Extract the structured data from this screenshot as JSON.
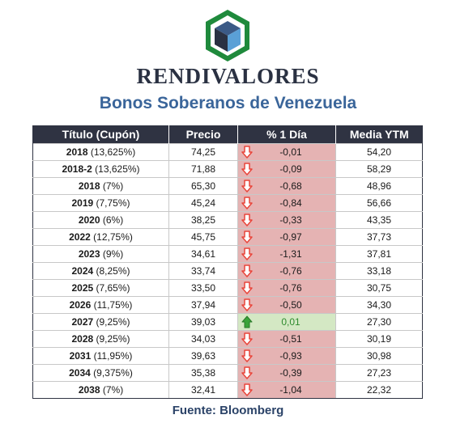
{
  "brand": "RENDIVALORES",
  "subtitle": "Bonos Soberanos de Venezuela",
  "table": {
    "headers": [
      "Título (Cupón)",
      "Precio",
      "% 1 Día",
      "Media YTM"
    ],
    "rows": [
      {
        "year": "2018",
        "coupon": " (13,625%)",
        "price": "74,25",
        "change": "-0,01",
        "direction": "down",
        "ytm": "54,20"
      },
      {
        "year": "2018-2",
        "coupon": " (13,625%)",
        "price": "71,88",
        "change": "-0,09",
        "direction": "down",
        "ytm": "58,29"
      },
      {
        "year": "2018",
        "coupon": " (7%)",
        "price": "65,30",
        "change": "-0,68",
        "direction": "down",
        "ytm": "48,96"
      },
      {
        "year": "2019",
        "coupon": " (7,75%)",
        "price": "45,24",
        "change": "-0,84",
        "direction": "down",
        "ytm": "56,66"
      },
      {
        "year": "2020",
        "coupon": " (6%)",
        "price": "38,25",
        "change": "-0,33",
        "direction": "down",
        "ytm": "43,35"
      },
      {
        "year": "2022",
        "coupon": " (12,75%)",
        "price": "45,75",
        "change": "-0,97",
        "direction": "down",
        "ytm": "37,73"
      },
      {
        "year": "2023",
        "coupon": " (9%)",
        "price": "34,61",
        "change": "-1,31",
        "direction": "down",
        "ytm": "37,81"
      },
      {
        "year": "2024",
        "coupon": " (8,25%)",
        "price": "33,74",
        "change": "-0,76",
        "direction": "down",
        "ytm": "33,18"
      },
      {
        "year": "2025",
        "coupon": " (7,65%)",
        "price": "33,50",
        "change": "-0,76",
        "direction": "down",
        "ytm": "30,75"
      },
      {
        "year": "2026",
        "coupon": " (11,75%)",
        "price": "37,94",
        "change": "-0,50",
        "direction": "down",
        "ytm": "34,30"
      },
      {
        "year": "2027",
        "coupon": " (9,25%)",
        "price": "39,03",
        "change": "0,01",
        "direction": "up",
        "ytm": "27,30"
      },
      {
        "year": "2028",
        "coupon": " (9,25%)",
        "price": "34,03",
        "change": "-0,51",
        "direction": "down",
        "ytm": "30,19"
      },
      {
        "year": "2031",
        "coupon": " (11,95%)",
        "price": "39,63",
        "change": "-0,93",
        "direction": "down",
        "ytm": "30,98"
      },
      {
        "year": "2034",
        "coupon": " (9,375%)",
        "price": "35,38",
        "change": "-0,39",
        "direction": "down",
        "ytm": "27,23"
      },
      {
        "year": "2038",
        "coupon": " (7%)",
        "price": "32,41",
        "change": "-1,04",
        "direction": "down",
        "ytm": "22,32"
      }
    ]
  },
  "source": "Fuente: Bloomberg",
  "icons": {
    "logo": "hexagon-cube-logo",
    "down": "red-down-arrow-icon",
    "up": "green-up-arrow-icon"
  },
  "colors": {
    "header_bg": "#2f3342",
    "negative_bg": "#e5b3b3",
    "positive_bg": "#d4e8c4",
    "down_arrow": "#e8443a",
    "up_arrow": "#3aa33a",
    "subtitle": "#3a659a"
  }
}
